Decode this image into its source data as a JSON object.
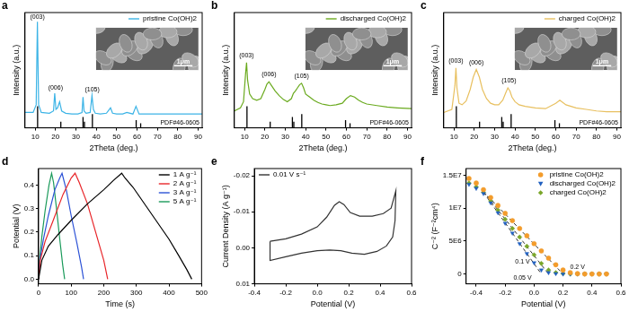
{
  "chart_data": [
    {
      "type": "line",
      "label": "a",
      "x_label": "2Theta (deg.)",
      "y_label": "Intensity (a.u.)",
      "xlim": [
        5,
        92
      ],
      "xticks": [
        10,
        20,
        30,
        40,
        50,
        60,
        70,
        80,
        90
      ],
      "ylim": [
        0,
        150
      ],
      "tick_labels": "x",
      "grid": false,
      "legend": "top-right",
      "series": [
        {
          "name": "pristine Co(OH)2",
          "color": "#3cb4e6",
          "x": [
            5,
            9,
            10.5,
            11.1,
            11.7,
            13,
            17,
            19,
            19.6,
            20.2,
            21,
            22,
            23,
            25,
            28,
            31,
            33,
            33.5,
            34,
            35,
            37,
            37.9,
            38.6,
            39.5,
            42,
            45,
            47,
            48,
            50,
            53,
            55,
            58,
            59.5,
            61,
            65,
            70,
            75,
            80,
            85,
            92
          ],
          "values": [
            20,
            20,
            30,
            138,
            30,
            20,
            19,
            22,
            45,
            24,
            26,
            34,
            22,
            19,
            18,
            18,
            20,
            40,
            22,
            19,
            20,
            42,
            24,
            19,
            18,
            19,
            26,
            19,
            18,
            18,
            20,
            18,
            28,
            18,
            18,
            18,
            18,
            18,
            18,
            18
          ]
        }
      ],
      "reference": {
        "label": "PDF#46-0605",
        "color": "#000000",
        "x": [
          11.2,
          22.6,
          33.5,
          34.2,
          38.1,
          59.6,
          61.8
        ],
        "values": [
          28,
          8,
          14,
          8,
          18,
          10,
          6
        ]
      },
      "annotations": [
        {
          "text": "(003)",
          "x": 11.1,
          "y": 140
        },
        {
          "text": "(006)",
          "x": 20,
          "y": 48
        },
        {
          "text": "(105)",
          "x": 38,
          "y": 45
        }
      ],
      "inset_label": "1μm"
    },
    {
      "type": "line",
      "label": "b",
      "x_label": "2Theta (deg.)",
      "y_label": "Intensity (a.u.)",
      "xlim": [
        5,
        92
      ],
      "xticks": [
        10,
        20,
        30,
        40,
        50,
        60,
        70,
        80,
        90
      ],
      "ylim": [
        0,
        150
      ],
      "tick_labels": "x",
      "grid": false,
      "legend": "top-right",
      "series": [
        {
          "name": "discharged Co(OH)2",
          "color": "#6aaa1e",
          "x": [
            5,
            8,
            9.5,
            10.5,
            11,
            11.5,
            12.5,
            14,
            16,
            18,
            20,
            21,
            22,
            23,
            25,
            27,
            29,
            31,
            33,
            34,
            35,
            36,
            37,
            38,
            39,
            40,
            42,
            44,
            46,
            48,
            50,
            52,
            55,
            58,
            60,
            62,
            64,
            66,
            68,
            70,
            75,
            80,
            85,
            92
          ],
          "values": [
            22,
            26,
            34,
            70,
            85,
            62,
            44,
            38,
            36,
            38,
            50,
            57,
            60,
            56,
            48,
            42,
            37,
            34,
            38,
            45,
            48,
            52,
            56,
            58,
            52,
            44,
            40,
            36,
            33,
            31,
            30,
            29,
            30,
            32,
            38,
            42,
            40,
            36,
            33,
            31,
            29,
            27,
            26,
            25
          ]
        }
      ],
      "reference": {
        "label": "PDF#46-0605",
        "color": "#000000",
        "x": [
          11.2,
          22.6,
          33.5,
          34.2,
          38.1,
          59.6,
          61.8
        ],
        "values": [
          28,
          8,
          14,
          8,
          18,
          10,
          6
        ]
      },
      "annotations": [
        {
          "text": "(003)",
          "x": 11,
          "y": 90
        },
        {
          "text": "(006)",
          "x": 22,
          "y": 65
        },
        {
          "text": "(105)",
          "x": 38,
          "y": 63
        }
      ],
      "inset_label": "1μm"
    },
    {
      "type": "line",
      "label": "c",
      "x_label": "2Theta (deg.)",
      "y_label": "Intensity (a.u.)",
      "xlim": [
        5,
        92
      ],
      "xticks": [
        10,
        20,
        30,
        40,
        50,
        60,
        70,
        80,
        90
      ],
      "ylim": [
        0,
        150
      ],
      "tick_labels": "x",
      "grid": false,
      "legend": "top-right",
      "series": [
        {
          "name": "charged Co(OH)2",
          "color": "#e8c060",
          "x": [
            5,
            9,
            10.5,
            11,
            11.5,
            12.5,
            14,
            16,
            18,
            19.5,
            21,
            22.5,
            24,
            26,
            28,
            30,
            32,
            34,
            35.5,
            36.5,
            37.5,
            38.5,
            40,
            42,
            45,
            50,
            55,
            60,
            62,
            65,
            70,
            75,
            80,
            85,
            92
          ],
          "values": [
            20,
            24,
            55,
            78,
            52,
            32,
            30,
            35,
            50,
            66,
            76,
            66,
            50,
            38,
            32,
            30,
            30,
            36,
            46,
            52,
            48,
            40,
            34,
            30,
            28,
            26,
            25,
            32,
            36,
            30,
            26,
            24,
            22,
            21,
            21
          ]
        }
      ],
      "reference": {
        "label": "PDF#46-0605",
        "color": "#000000",
        "x": [
          11.2,
          22.6,
          33.5,
          34.2,
          38.1,
          59.6,
          61.8
        ],
        "values": [
          28,
          8,
          14,
          8,
          18,
          10,
          6
        ]
      },
      "annotations": [
        {
          "text": "(003)",
          "x": 11,
          "y": 83
        },
        {
          "text": "(006)",
          "x": 21,
          "y": 81
        },
        {
          "text": "(105)",
          "x": 37,
          "y": 57
        }
      ],
      "inset_label": "1μm"
    },
    {
      "type": "line",
      "label": "d",
      "x_label": "Time (s)",
      "y_label": "Potential (V)",
      "xlim": [
        0,
        500
      ],
      "xticks": [
        0,
        100,
        200,
        300,
        400,
        500
      ],
      "ylim": [
        -0.02,
        0.47
      ],
      "yticks": [
        {
          "value": 0,
          "label": "0.0"
        },
        0.1,
        0.2,
        0.3,
        0.4
      ],
      "grid": false,
      "legend": "top-right",
      "series": [
        {
          "name": "1 A g⁻¹",
          "color": "#000000",
          "x": [
            0,
            10,
            30,
            60,
            100,
            150,
            200,
            230,
            255,
            265,
            290,
            320,
            360,
            400,
            430,
            455,
            470
          ],
          "values": [
            0,
            0.08,
            0.14,
            0.19,
            0.25,
            0.32,
            0.38,
            0.42,
            0.45,
            0.43,
            0.39,
            0.33,
            0.25,
            0.17,
            0.1,
            0.04,
            0
          ]
        },
        {
          "name": "2 A g⁻¹",
          "color": "#e8262a",
          "x": [
            0,
            5,
            20,
            45,
            75,
            100,
            112,
            125,
            150,
            175,
            200,
            212
          ],
          "values": [
            0,
            0.08,
            0.16,
            0.25,
            0.36,
            0.43,
            0.45,
            0.41,
            0.32,
            0.2,
            0.08,
            0
          ]
        },
        {
          "name": "3 A g⁻¹",
          "color": "#2c52d6",
          "x": [
            0,
            4,
            15,
            30,
            50,
            65,
            72,
            85,
            100,
            118,
            132,
            138
          ],
          "values": [
            0,
            0.08,
            0.17,
            0.27,
            0.38,
            0.43,
            0.45,
            0.38,
            0.27,
            0.15,
            0.05,
            0
          ]
        },
        {
          "name": "5 A g⁻¹",
          "color": "#1a9a5a",
          "x": [
            0,
            3,
            10,
            20,
            32,
            40,
            46,
            55,
            65,
            74,
            80
          ],
          "values": [
            0,
            0.08,
            0.18,
            0.29,
            0.4,
            0.45,
            0.41,
            0.3,
            0.17,
            0.06,
            0
          ]
        }
      ]
    },
    {
      "type": "line",
      "label": "e",
      "x_label": "Potential (V)",
      "y_label": "Current Density (A g⁻¹)",
      "xlim": [
        -0.4,
        0.6
      ],
      "xticks": [
        -0.4,
        -0.2,
        {
          "value": 0,
          "label": "0.0"
        },
        0.2,
        0.4,
        0.6
      ],
      "ylim": [
        0.01,
        -0.022
      ],
      "yticks": [
        -0.02,
        -0.01,
        {
          "value": 0,
          "label": "0.00"
        },
        0.01
      ],
      "grid": false,
      "legend": "top-left",
      "series": [
        {
          "name": "0.01 V s⁻¹",
          "color": "#333333",
          "x": [
            -0.3,
            -0.2,
            -0.1,
            0.0,
            0.06,
            0.11,
            0.14,
            0.17,
            0.21,
            0.27,
            0.35,
            0.42,
            0.47,
            0.5,
            0.495,
            0.48,
            0.44,
            0.38,
            0.3,
            0.22,
            0.15,
            0.08,
            0.0,
            -0.1,
            -0.2,
            -0.3,
            -0.3
          ],
          "values": [
            -0.0018,
            -0.0025,
            -0.0038,
            -0.0058,
            -0.0085,
            -0.0118,
            -0.0128,
            -0.012,
            -0.0098,
            -0.0088,
            -0.0088,
            -0.0095,
            -0.011,
            -0.0158,
            -0.0075,
            -0.003,
            -0.0005,
            0.001,
            0.0018,
            0.0015,
            0.0008,
            0.0006,
            0.0008,
            0.0015,
            0.0025,
            0.0035,
            -0.0018
          ]
        }
      ]
    },
    {
      "type": "scatter",
      "label": "f",
      "x_label": "Potential (V)",
      "y_label": "C⁻² (F⁻²cm⁴)",
      "xlim": [
        -0.47,
        0.6
      ],
      "xticks": [
        -0.4,
        -0.2,
        {
          "value": 0,
          "label": "0.0"
        },
        0.2,
        0.4,
        0.6
      ],
      "ylim": [
        -1500000,
        16000000
      ],
      "yticks": [
        0,
        {
          "value": 5000000,
          "label": "5E6"
        },
        {
          "value": 10000000,
          "label": "1E7"
        },
        {
          "value": 15000000,
          "label": "1.5E7"
        }
      ],
      "grid": false,
      "legend": "top-right",
      "series": [
        {
          "name": "pristine Co(OH)2",
          "color": "#f39c2c",
          "marker": "circle",
          "x": [
            -0.45,
            -0.4,
            -0.35,
            -0.3,
            -0.25,
            -0.2,
            -0.15,
            -0.1,
            -0.05,
            0,
            0.05,
            0.1,
            0.15,
            0.2,
            0.25,
            0.3,
            0.35,
            0.4,
            0.45,
            0.5
          ],
          "values": [
            14500000,
            13800000,
            12800000,
            11600000,
            10400000,
            9200000,
            8100000,
            6900000,
            5800000,
            4600000,
            3500000,
            2400000,
            1400000,
            600000,
            200000,
            50000,
            0,
            0,
            0,
            0
          ]
        },
        {
          "name": "discharged Co(OH)2",
          "color": "#2060c0",
          "marker": "triangle_down",
          "x": [
            -0.45,
            -0.4,
            -0.35,
            -0.3,
            -0.25,
            -0.2,
            -0.15,
            -0.1,
            -0.05,
            0,
            0.05,
            0.1,
            0.15,
            0.2,
            0.25,
            0.3,
            0.35,
            0.4,
            0.45,
            0.5
          ],
          "values": [
            13600000,
            13000000,
            12200000,
            10800000,
            9300000,
            7700000,
            6200000,
            4600000,
            3100000,
            1700000,
            600000,
            200000,
            50000,
            0,
            0,
            0,
            0,
            0,
            0,
            0
          ]
        },
        {
          "name": "charged Co(OH)2",
          "color": "#7aa62a",
          "marker": "diamond",
          "x": [
            -0.45,
            -0.4,
            -0.35,
            -0.3,
            -0.25,
            -0.2,
            -0.15,
            -0.1,
            -0.05,
            0,
            0.05,
            0.1,
            0.15,
            0.2,
            0.25,
            0.3,
            0.35,
            0.4,
            0.45,
            0.5
          ],
          "values": [
            13800000,
            13200000,
            12400000,
            11100000,
            9700000,
            8300000,
            6900000,
            5600000,
            4200000,
            2900000,
            1600000,
            600000,
            200000,
            50000,
            0,
            0,
            0,
            0,
            0,
            0
          ]
        }
      ],
      "fits": [
        {
          "color": "#333333",
          "line_style": "dashed",
          "x": [
            -0.35,
            0.2
          ],
          "values": [
            12500000,
            0
          ]
        },
        {
          "color": "#333333",
          "line_style": "dashed",
          "x": [
            -0.35,
            0.1
          ],
          "values": [
            12500000,
            0
          ]
        },
        {
          "color": "#333333",
          "line_style": "dashed",
          "x": [
            -0.35,
            0.05
          ],
          "values": [
            12400000,
            0
          ]
        }
      ],
      "annotations": [
        {
          "text": "0.1 V",
          "x": -0.08,
          "y": 1300000
        },
        {
          "text": "0.05 V",
          "x": -0.08,
          "y": -1100000
        },
        {
          "text": "0.2 V",
          "x": 0.3,
          "y": 600000
        }
      ]
    }
  ]
}
